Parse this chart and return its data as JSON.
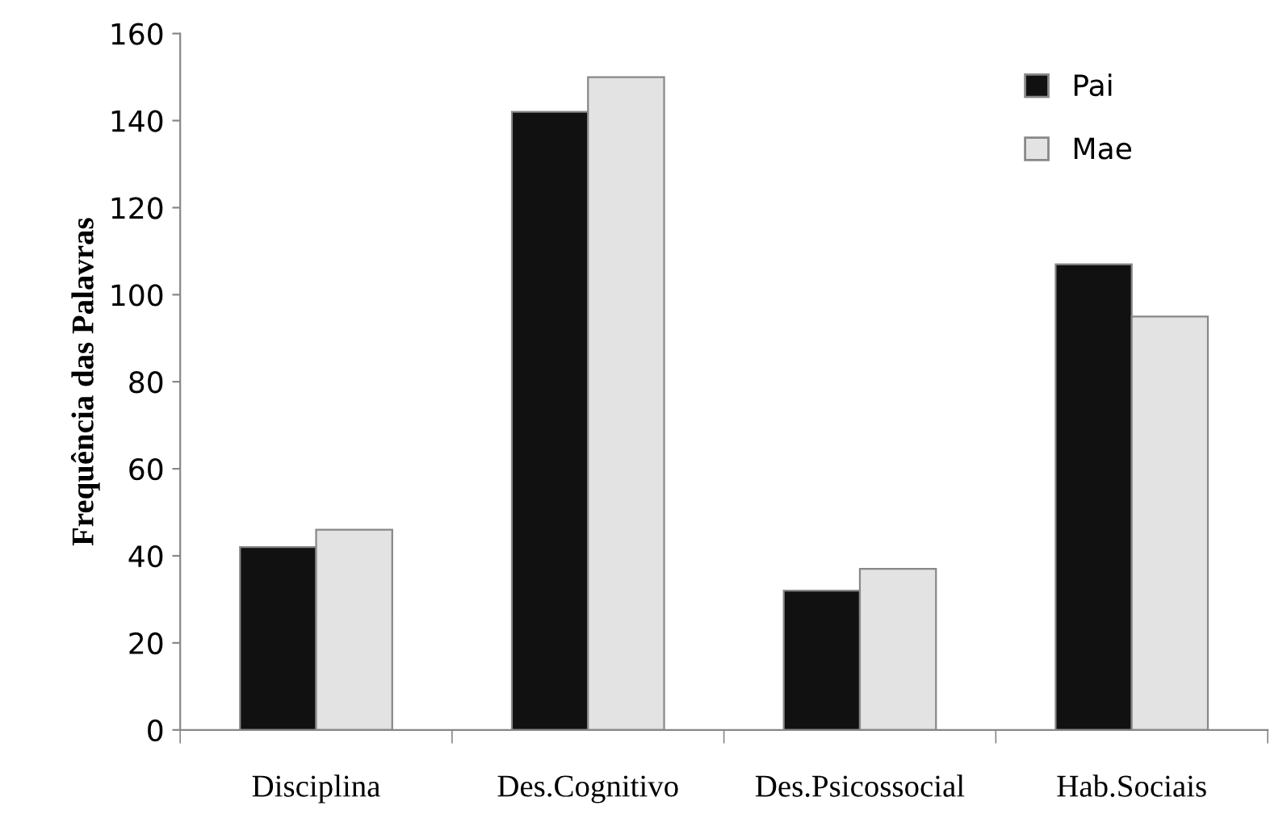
{
  "chart_data": {
    "type": "bar",
    "ylabel": "Frequência das Palavras",
    "categories": [
      "Disciplina",
      "Des.Cognitivo",
      "Des.Psicossocial",
      "Hab.Sociais"
    ],
    "series": [
      {
        "name": "Pai",
        "color": "#111111",
        "values": [
          42,
          142,
          32,
          107
        ]
      },
      {
        "name": "Mae",
        "color": "#e3e3e3",
        "values": [
          46,
          150,
          37,
          95
        ]
      }
    ],
    "ylim": [
      0,
      160
    ],
    "yticks": [
      0,
      20,
      40,
      60,
      80,
      100,
      120,
      140,
      160
    ],
    "grid": false,
    "legend": "top right"
  }
}
